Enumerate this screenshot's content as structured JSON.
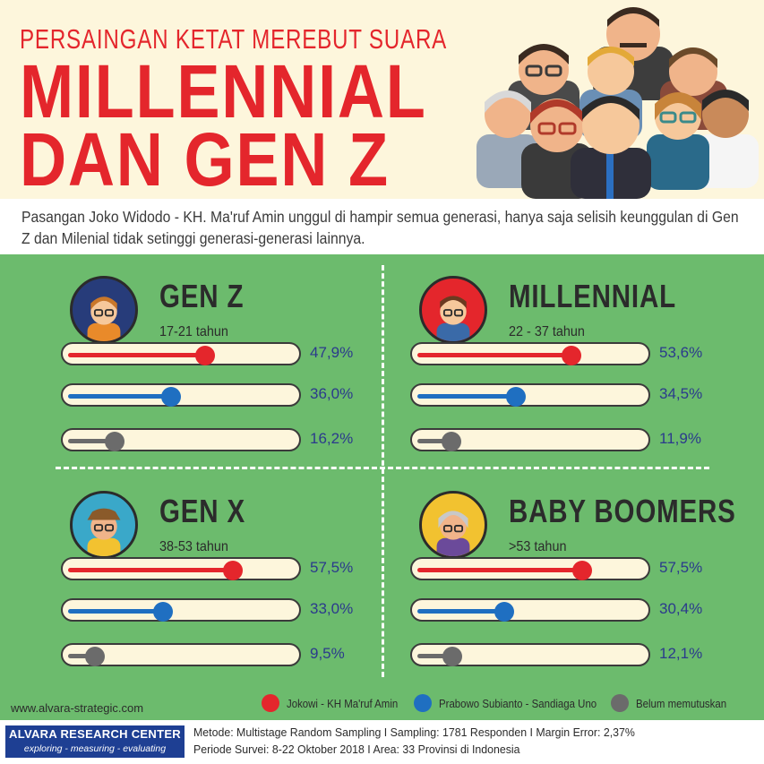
{
  "header": {
    "kicker": "PERSAINGAN KETAT MEREBUT SUARA",
    "title_line1": "MILLENNIAL",
    "title_line2": "DAN GEN Z"
  },
  "intro": {
    "text": "Pasangan Joko Widodo - KH. Ma'ruf Amin unggul di hampir semua generasi, hanya saja selisih keunggulan di Gen Z dan Milenial tidak setinggi generasi-generasi lainnya."
  },
  "colors": {
    "title_red": "#e4262c",
    "jokowi": "#e4262c",
    "prabowo": "#1f6fc1",
    "undecided": "#6b6b6b",
    "panel_bg": "#6cbb6d",
    "value_text": "#2b3a8c"
  },
  "chart_data": {
    "type": "bar",
    "series_names": [
      "Jokowi - KH Ma'ruf Amin",
      "Prabowo Subianto - Sandiaga Uno",
      "Belum memutuskan"
    ],
    "groups": [
      {
        "name": "GEN Z",
        "age": "17-21 tahun",
        "avatar": "genz-avatar-icon",
        "values": [
          47.9,
          36.0,
          16.2
        ],
        "labels": [
          "47,9%",
          "36,0%",
          "16,2%"
        ]
      },
      {
        "name": "MILLENNIAL",
        "age": "22 - 37 tahun",
        "avatar": "millennial-avatar-icon",
        "values": [
          53.6,
          34.5,
          11.9
        ],
        "labels": [
          "53,6%",
          "34,5%",
          "11,9%"
        ]
      },
      {
        "name": "GEN X",
        "age": "38-53 tahun",
        "avatar": "genx-avatar-icon",
        "values": [
          57.5,
          33.0,
          9.5
        ],
        "labels": [
          "57,5%",
          "33,0%",
          "9,5%"
        ]
      },
      {
        "name": "BABY BOOMERS",
        "age": ">53 tahun",
        "avatar": "babyboomer-avatar-icon",
        "values": [
          57.5,
          30.4,
          12.1
        ],
        "labels": [
          "57,5%",
          "30,4%",
          "12,1%"
        ]
      }
    ],
    "value_max": 80
  },
  "legend": [
    {
      "label": "Jokowi - KH Ma'ruf Amin",
      "color": "#e4262c"
    },
    {
      "label": "Prabowo Subianto - Sandiaga Uno",
      "color": "#1f6fc1"
    },
    {
      "label": "Belum memutuskan",
      "color": "#6b6b6b"
    }
  ],
  "footer": {
    "url": "www.alvara-strategic.com",
    "brand_name": "ALVARA RESEARCH CENTER",
    "brand_tagline": "exploring - measuring - evaluating",
    "method_line1": "Metode: Multistage Random Sampling I Sampling: 1781 Responden  I Margin Error:  2,37%",
    "method_line2": "Periode Survei: 8-22 Oktober 2018  I Area: 33 Provinsi di Indonesia"
  }
}
